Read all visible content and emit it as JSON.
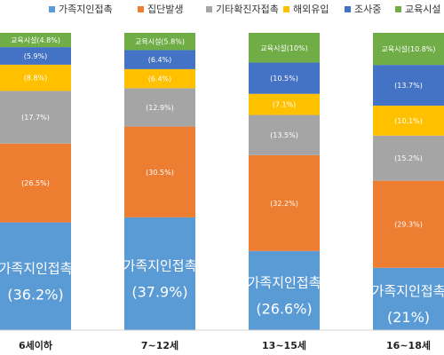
{
  "chart_data": {
    "type": "bar",
    "stacked": true,
    "percent": true,
    "categories": [
      "6세이하",
      "7~12세",
      "13~15세",
      "16~18세"
    ],
    "series": [
      {
        "name": "가족지인접촉",
        "color": "#5B9BD5",
        "values": [
          36.2,
          37.9,
          26.6,
          21.0
        ],
        "labels": [
          "(36.2%)",
          "(37.9%)",
          "(26.6%)",
          "(21%)"
        ],
        "big_label": "가족지인접촉"
      },
      {
        "name": "집단발생",
        "color": "#ED7D31",
        "values": [
          26.5,
          30.5,
          32.2,
          29.3
        ],
        "labels": [
          "(26.5%)",
          "(30.5%)",
          "(32.2%)",
          "(29.3%)"
        ]
      },
      {
        "name": "기타확진자접촉",
        "color": "#A5A5A5",
        "values": [
          17.7,
          12.9,
          13.5,
          15.2
        ],
        "labels": [
          "(17.7%)",
          "(12.9%)",
          "(13.5%)",
          "(15.2%)"
        ]
      },
      {
        "name": "해외유입",
        "color": "#FFC000",
        "values": [
          8.8,
          6.4,
          7.1,
          10.1
        ],
        "labels": [
          "(8.8%)",
          "(6.4%)",
          "(7.1%)",
          "(10.1%)"
        ]
      },
      {
        "name": "조사중",
        "color": "#4472C4",
        "values": [
          5.9,
          6.4,
          10.5,
          13.7
        ],
        "labels": [
          "(5.9%)",
          "(6.4%)",
          "(10.5%)",
          "(13.7%)"
        ]
      },
      {
        "name": "교육시설",
        "color": "#70AD47",
        "values": [
          4.8,
          5.8,
          10.0,
          10.8
        ],
        "labels": [
          "교육시설(4.8%)",
          "교육시설(5.8%)",
          "교육시설(10%)",
          "교육시설(10.8%)"
        ]
      }
    ],
    "legend_position": "top",
    "grid": false
  }
}
